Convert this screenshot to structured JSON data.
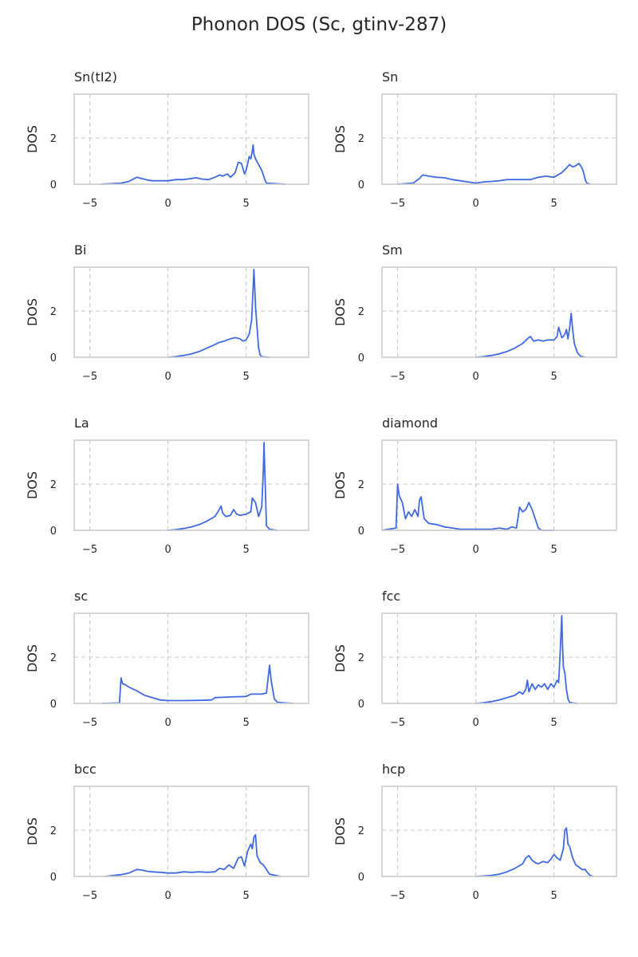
{
  "figure": {
    "title": "Phonon DOS (Sc, gtinv-287)"
  },
  "style": {
    "line_color": "#4169e1",
    "frame_color": "#cccccc",
    "grid_color": "#cccccc",
    "text_color": "#262626"
  },
  "chart_data": [
    {
      "type": "line",
      "title": "Sn(tI2)",
      "xlabel": "",
      "ylabel": "DOS",
      "xlim": [
        -6,
        9
      ],
      "ylim": [
        0,
        3.9
      ],
      "xticks": [
        -5,
        0,
        5
      ],
      "yticks": [
        0,
        2
      ],
      "grid": true,
      "x": [
        -4.3,
        -3.0,
        -2.5,
        -2.0,
        -1.7,
        -1.3,
        -1.0,
        -0.5,
        0.0,
        0.5,
        1.0,
        1.5,
        1.8,
        2.2,
        2.6,
        3.0,
        3.3,
        3.5,
        3.8,
        4.0,
        4.3,
        4.5,
        4.7,
        4.9,
        5.0,
        5.1,
        5.2,
        5.3,
        5.4,
        5.45,
        5.5,
        5.6,
        5.8,
        6.0,
        6.2,
        6.3,
        7.5
      ],
      "y": [
        0.0,
        0.05,
        0.12,
        0.3,
        0.25,
        0.18,
        0.15,
        0.15,
        0.15,
        0.2,
        0.2,
        0.25,
        0.28,
        0.22,
        0.2,
        0.3,
        0.4,
        0.35,
        0.45,
        0.3,
        0.5,
        0.95,
        0.9,
        0.45,
        0.6,
        0.9,
        1.2,
        1.1,
        1.45,
        1.7,
        1.3,
        1.1,
        0.85,
        0.6,
        0.2,
        0.05,
        0.0
      ]
    },
    {
      "type": "line",
      "title": "Sn",
      "xlabel": "",
      "ylabel": "DOS",
      "xlim": [
        -6,
        9
      ],
      "ylim": [
        0,
        3.9
      ],
      "xticks": [
        -5,
        0,
        5
      ],
      "yticks": [
        0,
        2
      ],
      "grid": true,
      "x": [
        -5.0,
        -4.0,
        -3.6,
        -3.4,
        -3.0,
        -2.5,
        -2.0,
        -1.5,
        -1.0,
        -0.5,
        0.0,
        0.5,
        1.0,
        1.5,
        2.0,
        2.5,
        3.0,
        3.5,
        4.0,
        4.5,
        5.0,
        5.5,
        5.8,
        6.0,
        6.2,
        6.4,
        6.6,
        6.8,
        6.9,
        7.0,
        7.1,
        7.3
      ],
      "y": [
        0.0,
        0.05,
        0.25,
        0.4,
        0.35,
        0.3,
        0.28,
        0.2,
        0.15,
        0.1,
        0.05,
        0.1,
        0.12,
        0.15,
        0.2,
        0.2,
        0.2,
        0.2,
        0.3,
        0.35,
        0.3,
        0.5,
        0.7,
        0.85,
        0.75,
        0.8,
        0.9,
        0.7,
        0.5,
        0.2,
        0.05,
        0.0
      ]
    },
    {
      "type": "line",
      "title": "Bi",
      "xlabel": "",
      "ylabel": "DOS",
      "xlim": [
        -6,
        9
      ],
      "ylim": [
        0,
        3.9
      ],
      "xticks": [
        -5,
        0,
        5
      ],
      "yticks": [
        0,
        2
      ],
      "grid": true,
      "x": [
        0.0,
        0.5,
        1.0,
        1.5,
        2.0,
        2.5,
        3.0,
        3.3,
        3.6,
        4.0,
        4.3,
        4.6,
        4.8,
        5.0,
        5.2,
        5.35,
        5.45,
        5.5,
        5.55,
        5.6,
        5.7,
        5.8,
        5.9,
        6.0,
        6.5
      ],
      "y": [
        0.0,
        0.03,
        0.08,
        0.15,
        0.25,
        0.4,
        0.55,
        0.65,
        0.7,
        0.8,
        0.85,
        0.8,
        0.7,
        0.75,
        1.0,
        1.6,
        3.0,
        3.8,
        3.0,
        2.2,
        1.3,
        0.4,
        0.1,
        0.02,
        0.0
      ]
    },
    {
      "type": "line",
      "title": "Sm",
      "xlabel": "",
      "ylabel": "DOS",
      "xlim": [
        -6,
        9
      ],
      "ylim": [
        0,
        3.9
      ],
      "xticks": [
        -5,
        0,
        5
      ],
      "yticks": [
        0,
        2
      ],
      "grid": true,
      "x": [
        0.0,
        0.5,
        1.0,
        1.5,
        2.0,
        2.5,
        3.0,
        3.3,
        3.5,
        3.7,
        4.0,
        4.3,
        4.6,
        5.0,
        5.2,
        5.3,
        5.5,
        5.6,
        5.7,
        5.8,
        5.9,
        6.0,
        6.1,
        6.2,
        6.3,
        6.5,
        6.7,
        7.0
      ],
      "y": [
        0.0,
        0.03,
        0.08,
        0.15,
        0.25,
        0.4,
        0.6,
        0.8,
        0.9,
        0.7,
        0.75,
        0.7,
        0.75,
        0.75,
        0.9,
        1.3,
        0.85,
        0.9,
        1.0,
        1.2,
        0.8,
        1.25,
        1.9,
        1.2,
        0.6,
        0.2,
        0.05,
        0.0
      ]
    },
    {
      "type": "line",
      "title": "La",
      "xlabel": "",
      "ylabel": "DOS",
      "xlim": [
        -6,
        9
      ],
      "ylim": [
        0,
        3.9
      ],
      "xticks": [
        -5,
        0,
        5
      ],
      "yticks": [
        0,
        2
      ],
      "grid": true,
      "x": [
        0.0,
        0.5,
        1.0,
        1.5,
        2.0,
        2.5,
        3.0,
        3.2,
        3.4,
        3.5,
        3.7,
        4.0,
        4.2,
        4.4,
        4.6,
        5.0,
        5.3,
        5.4,
        5.6,
        5.8,
        6.0,
        6.1,
        6.15,
        6.2,
        6.3,
        6.5,
        7.0
      ],
      "y": [
        0.0,
        0.03,
        0.08,
        0.15,
        0.25,
        0.4,
        0.6,
        0.8,
        1.05,
        0.75,
        0.6,
        0.65,
        0.9,
        0.7,
        0.65,
        0.7,
        0.8,
        1.4,
        1.2,
        0.6,
        1.0,
        2.6,
        3.8,
        2.5,
        0.2,
        0.05,
        0.0
      ]
    },
    {
      "type": "line",
      "title": "diamond",
      "xlabel": "",
      "ylabel": "DOS",
      "xlim": [
        -6,
        9
      ],
      "ylim": [
        0,
        3.9
      ],
      "xticks": [
        -5,
        0,
        5
      ],
      "yticks": [
        0,
        2
      ],
      "grid": true,
      "x": [
        -6.0,
        -5.1,
        -5.0,
        -4.9,
        -4.7,
        -4.5,
        -4.3,
        -4.1,
        -3.9,
        -3.7,
        -3.6,
        -3.5,
        -3.3,
        -3.0,
        -2.5,
        -2.0,
        -1.5,
        -1.0,
        0.0,
        1.0,
        1.5,
        2.0,
        2.3,
        2.6,
        2.8,
        3.0,
        3.2,
        3.4,
        3.6,
        3.8,
        4.0,
        4.2,
        5.0
      ],
      "y": [
        0.0,
        0.1,
        2.0,
        1.5,
        1.2,
        0.5,
        0.8,
        0.6,
        0.9,
        0.6,
        1.3,
        1.45,
        0.5,
        0.3,
        0.25,
        0.15,
        0.1,
        0.05,
        0.05,
        0.05,
        0.1,
        0.05,
        0.15,
        0.1,
        1.0,
        0.8,
        0.9,
        1.2,
        0.9,
        0.5,
        0.1,
        0.0,
        0.0
      ]
    },
    {
      "type": "line",
      "title": "sc",
      "xlabel": "",
      "ylabel": "DOS",
      "xlim": [
        -6,
        9
      ],
      "ylim": [
        0,
        3.9
      ],
      "xticks": [
        -5,
        0,
        5
      ],
      "yticks": [
        0,
        2
      ],
      "grid": true,
      "x": [
        -4.2,
        -3.1,
        -3.0,
        -2.9,
        -2.7,
        -2.5,
        -2.0,
        -1.5,
        -1.0,
        -0.5,
        0.0,
        0.5,
        1.0,
        2.0,
        2.8,
        3.0,
        4.0,
        5.0,
        5.3,
        6.0,
        6.3,
        6.4,
        6.5,
        6.6,
        6.8,
        7.0,
        8.0
      ],
      "y": [
        0.0,
        0.02,
        1.1,
        0.85,
        0.8,
        0.7,
        0.55,
        0.35,
        0.25,
        0.15,
        0.12,
        0.12,
        0.12,
        0.13,
        0.15,
        0.25,
        0.28,
        0.3,
        0.4,
        0.4,
        0.45,
        1.05,
        1.65,
        1.0,
        0.2,
        0.05,
        0.0
      ]
    },
    {
      "type": "line",
      "title": "fcc",
      "xlabel": "",
      "ylabel": "DOS",
      "xlim": [
        -6,
        9
      ],
      "ylim": [
        0,
        3.9
      ],
      "xticks": [
        -5,
        0,
        5
      ],
      "yticks": [
        0,
        2
      ],
      "grid": true,
      "x": [
        0.0,
        0.5,
        1.0,
        1.5,
        2.0,
        2.5,
        2.8,
        3.0,
        3.2,
        3.3,
        3.4,
        3.6,
        3.8,
        4.0,
        4.2,
        4.4,
        4.6,
        4.8,
        5.0,
        5.2,
        5.3,
        5.4,
        5.5,
        5.55,
        5.6,
        5.7,
        5.8,
        5.9,
        6.0,
        6.2,
        6.5
      ],
      "y": [
        0.0,
        0.03,
        0.08,
        0.15,
        0.25,
        0.35,
        0.5,
        0.4,
        0.6,
        1.0,
        0.5,
        0.85,
        0.6,
        0.8,
        0.7,
        0.85,
        0.6,
        0.85,
        0.7,
        1.0,
        0.9,
        2.2,
        3.8,
        2.5,
        1.6,
        1.3,
        0.6,
        0.2,
        0.05,
        0.02,
        0.0
      ]
    },
    {
      "type": "line",
      "title": "bcc",
      "xlabel": "",
      "ylabel": "DOS",
      "xlim": [
        -6,
        9
      ],
      "ylim": [
        0,
        3.9
      ],
      "xticks": [
        -5,
        0,
        5
      ],
      "yticks": [
        0,
        2
      ],
      "grid": true,
      "x": [
        -4.0,
        -3.0,
        -2.5,
        -2.0,
        -1.7,
        -1.3,
        -1.0,
        -0.5,
        0.0,
        0.5,
        1.0,
        1.5,
        2.0,
        2.5,
        3.0,
        3.3,
        3.6,
        3.9,
        4.2,
        4.5,
        4.7,
        4.9,
        5.1,
        5.3,
        5.4,
        5.5,
        5.6,
        5.7,
        5.9,
        6.1,
        6.3,
        6.5,
        7.2
      ],
      "y": [
        0.0,
        0.08,
        0.15,
        0.3,
        0.28,
        0.22,
        0.2,
        0.18,
        0.15,
        0.15,
        0.2,
        0.18,
        0.2,
        0.18,
        0.2,
        0.35,
        0.3,
        0.5,
        0.35,
        0.8,
        0.85,
        0.45,
        1.1,
        1.4,
        1.2,
        1.7,
        1.8,
        0.9,
        0.6,
        0.5,
        0.3,
        0.1,
        0.0
      ]
    },
    {
      "type": "line",
      "title": "hcp",
      "xlabel": "",
      "ylabel": "DOS",
      "xlim": [
        -6,
        9
      ],
      "ylim": [
        0,
        3.9
      ],
      "xticks": [
        -5,
        0,
        5
      ],
      "yticks": [
        0,
        2
      ],
      "grid": true,
      "x": [
        0.0,
        0.5,
        1.0,
        1.5,
        2.0,
        2.5,
        3.0,
        3.2,
        3.4,
        3.6,
        3.8,
        4.0,
        4.3,
        4.6,
        4.8,
        5.0,
        5.2,
        5.4,
        5.6,
        5.7,
        5.8,
        5.9,
        6.0,
        6.2,
        6.4,
        6.6,
        6.8,
        7.0,
        7.1,
        7.3,
        7.5
      ],
      "y": [
        0.0,
        0.02,
        0.05,
        0.1,
        0.2,
        0.35,
        0.55,
        0.8,
        0.9,
        0.7,
        0.6,
        0.55,
        0.65,
        0.6,
        0.75,
        0.95,
        0.8,
        0.7,
        1.2,
        2.0,
        2.1,
        1.4,
        1.3,
        0.8,
        0.5,
        0.4,
        0.3,
        0.3,
        0.2,
        0.05,
        0.0
      ]
    }
  ]
}
